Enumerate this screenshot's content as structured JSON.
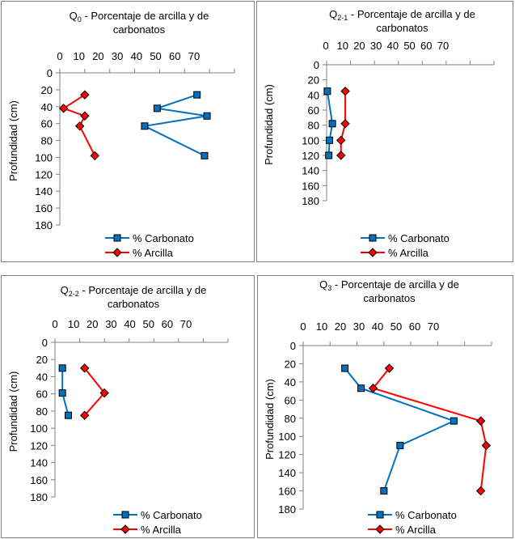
{
  "colors": {
    "carbonato": "#0070C0",
    "arcilla": "#FF0000",
    "axis": "#808080",
    "border": "#808080"
  },
  "chart_data": [
    {
      "type": "line",
      "title_main": "Q",
      "title_sub": "0",
      "title_rest": " - Porcentaje de arcilla y de",
      "title_line2": "carbonatos",
      "ylabel": "Profundidad (cm)",
      "xlim": [
        0,
        70
      ],
      "ylim": [
        0,
        180
      ],
      "y_inverted": true,
      "x_axis_position": "top",
      "x_ticks": [
        "0",
        "10",
        "20",
        "30",
        "40",
        "50",
        "60",
        "70"
      ],
      "y_ticks": [
        "0",
        "20",
        "40",
        "60",
        "80",
        "100",
        "120",
        "140",
        "160",
        "180"
      ],
      "legend_position": "bottom",
      "series": [
        {
          "name": "% Carbonato",
          "marker": "square",
          "x": [
            55,
            39,
            59,
            34,
            58
          ],
          "y": [
            26,
            42,
            51,
            63,
            98
          ]
        },
        {
          "name": "% Arcilla",
          "marker": "diamond",
          "x": [
            10,
            1.5,
            10,
            8,
            14
          ],
          "y": [
            26,
            42,
            51,
            63,
            98
          ]
        }
      ]
    },
    {
      "type": "line",
      "title_main": "Q",
      "title_sub": "2-1",
      "title_rest": " - Porcentaje de arcilla y de",
      "title_line2": "carbonatos",
      "ylabel": "Profundidad (cm)",
      "xlim": [
        0,
        70
      ],
      "ylim": [
        0,
        180
      ],
      "y_inverted": true,
      "x_axis_position": "top",
      "x_ticks": [
        "0",
        "10",
        "20",
        "30",
        "40",
        "50",
        "60",
        "70"
      ],
      "y_ticks": [
        "0",
        "20",
        "40",
        "60",
        "80",
        "100",
        "120",
        "140",
        "160",
        "180"
      ],
      "legend_position": "bottom",
      "series": [
        {
          "name": "% Carbonato",
          "marker": "square",
          "x": [
            0.3,
            2.4,
            1.2,
            0.9
          ],
          "y": [
            35,
            78,
            100,
            120
          ]
        },
        {
          "name": "% Arcilla",
          "marker": "diamond",
          "x": [
            7.8,
            7.8,
            6,
            6
          ],
          "y": [
            35,
            78,
            100,
            120
          ]
        }
      ]
    },
    {
      "type": "line",
      "title_main": "Q",
      "title_sub": "2-2",
      "title_rest": " - Porcentaje de arcilla y de",
      "title_line2": "carbonatos",
      "ylabel": "Profundidad (cm)",
      "xlim": [
        0,
        70
      ],
      "ylim": [
        0,
        180
      ],
      "y_inverted": true,
      "x_axis_position": "top",
      "x_ticks": [
        "0",
        "10",
        "20",
        "30",
        "40",
        "50",
        "60",
        "70"
      ],
      "y_ticks": [
        "0",
        "20",
        "40",
        "60",
        "80",
        "100",
        "120",
        "140",
        "160",
        "180"
      ],
      "legend_position": "bottom",
      "series": [
        {
          "name": "% Carbonato",
          "marker": "square",
          "x": [
            3,
            3,
            5.4
          ],
          "y": [
            30,
            59,
            85
          ]
        },
        {
          "name": "% Arcilla",
          "marker": "diamond",
          "x": [
            12,
            20,
            12
          ],
          "y": [
            30,
            59,
            85
          ]
        }
      ]
    },
    {
      "type": "line",
      "title_main": "Q",
      "title_sub": "3",
      "title_rest": " - Porcentaje de arcilla y de",
      "title_line2": "carbonatos",
      "ylabel": "Profundidad (cm)",
      "xlim": [
        0,
        70
      ],
      "ylim": [
        0,
        180
      ],
      "y_inverted": true,
      "x_axis_position": "top",
      "x_ticks": [
        "0",
        "10",
        "20",
        "30",
        "40",
        "50",
        "60",
        "70"
      ],
      "y_ticks": [
        "0",
        "20",
        "40",
        "60",
        "80",
        "100",
        "120",
        "140",
        "160",
        "180"
      ],
      "legend_position": "bottom",
      "series": [
        {
          "name": "% Carbonato",
          "marker": "square",
          "x": [
            15.5,
            21.5,
            56,
            36,
            30
          ],
          "y": [
            25,
            47,
            83,
            110,
            160
          ]
        },
        {
          "name": "% Arcilla",
          "marker": "diamond",
          "x": [
            32,
            26,
            66,
            68,
            66
          ],
          "y": [
            25,
            47,
            83,
            110,
            160
          ]
        }
      ]
    }
  ]
}
